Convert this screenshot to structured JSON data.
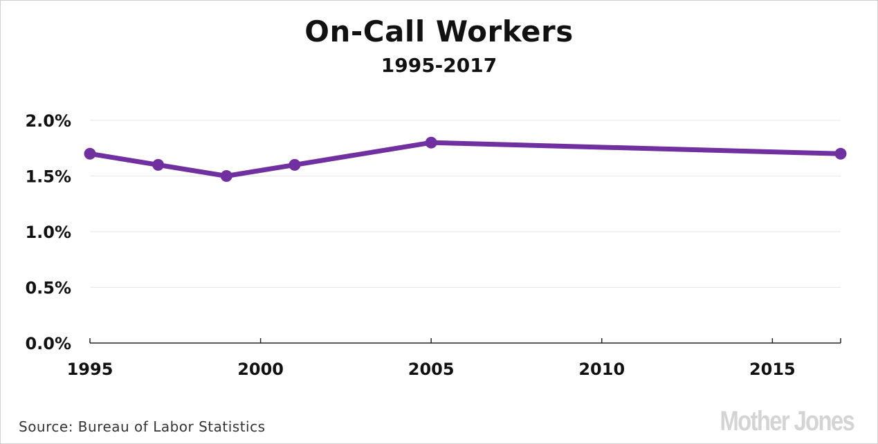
{
  "chart_data": {
    "type": "line",
    "title": "On-Call Workers",
    "subtitle": "1995-2017",
    "xlabel": "",
    "ylabel": "",
    "x": [
      1995,
      1997,
      1999,
      2001,
      2005,
      2017
    ],
    "series": [
      {
        "values": [
          1.7,
          1.6,
          1.5,
          1.6,
          1.8,
          1.7
        ]
      }
    ],
    "xlim": [
      1995,
      2017
    ],
    "ylim": [
      0,
      2.0
    ],
    "xticks": [
      1995,
      2000,
      2005,
      2010,
      2015
    ],
    "xtick_labels": [
      "1995",
      "2000",
      "2005",
      "2010",
      "2015"
    ],
    "yticks": [
      0,
      0.5,
      1.0,
      1.5,
      2.0
    ],
    "ytick_labels": [
      "0.0%",
      "0.5%",
      "1.0%",
      "1.5%",
      "2.0%"
    ],
    "grid": true,
    "line_color": "#7030a0"
  },
  "footer": {
    "source": "Source: Bureau of Labor Statistics",
    "brand": "Mother Jones"
  }
}
